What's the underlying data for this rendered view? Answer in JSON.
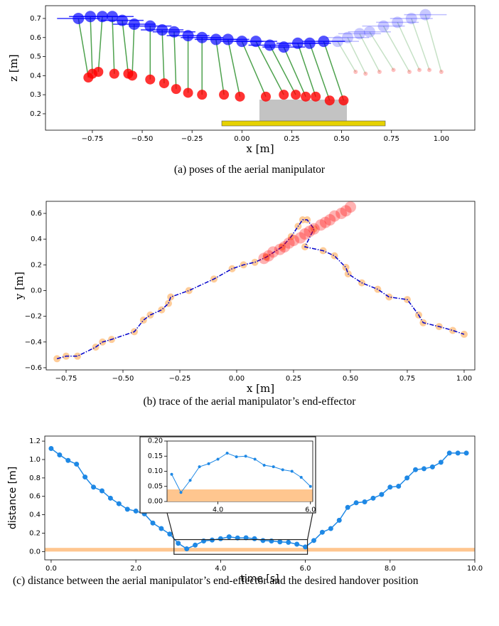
{
  "chart_data": [
    {
      "type": "poses",
      "caption": "(a) poses of the aerial manipulator",
      "xlabel": "x [m]",
      "ylabel": "z [m]",
      "xlim": [
        -0.985,
        1.168
      ],
      "ylim": [
        0.114,
        0.767
      ],
      "xticks": [
        {
          "value": -0.75,
          "label": "−0.75"
        },
        {
          "value": -0.5,
          "label": "−0.50"
        },
        {
          "value": -0.25,
          "label": "−0.25"
        },
        {
          "value": 0,
          "label": "0.00"
        },
        {
          "value": 0.25,
          "label": "0.25"
        },
        {
          "value": 0.5,
          "label": "0.50"
        },
        {
          "value": 0.75,
          "label": "0.75"
        },
        {
          "value": 1,
          "label": "1.00"
        }
      ],
      "yticks": [
        0.2,
        0.3,
        0.4,
        0.5,
        0.6,
        0.7
      ],
      "link_color": "#228b22",
      "series": [
        {
          "color": "#0000ff",
          "x": [
            -0.82,
            -0.76,
            -0.7,
            -0.65,
            -0.6,
            -0.54,
            -0.46,
            -0.4,
            -0.34,
            -0.27,
            -0.2,
            -0.13,
            -0.07,
            0.0,
            0.07,
            0.14,
            0.21,
            0.28,
            0.34,
            0.41,
            0.48,
            0.53,
            0.59,
            0.64,
            0.71,
            0.78,
            0.85,
            0.92
          ],
          "y": [
            0.7,
            0.71,
            0.71,
            0.71,
            0.69,
            0.67,
            0.66,
            0.64,
            0.63,
            0.61,
            0.6,
            0.59,
            0.59,
            0.58,
            0.58,
            0.56,
            0.55,
            0.57,
            0.57,
            0.58,
            0.58,
            0.6,
            0.62,
            0.63,
            0.66,
            0.68,
            0.7,
            0.72
          ]
        },
        {
          "color": "#ff0000",
          "x": [
            -0.77,
            -0.75,
            -0.72,
            -0.64,
            -0.57,
            -0.55,
            -0.46,
            -0.39,
            -0.33,
            -0.27,
            -0.2,
            -0.09,
            -0.01,
            0.12,
            0.21,
            0.27,
            0.32,
            0.37,
            0.44,
            0.51,
            0.57,
            0.62,
            0.69,
            0.76,
            0.84,
            0.89,
            0.94,
            1.0
          ],
          "y": [
            0.39,
            0.41,
            0.42,
            0.41,
            0.41,
            0.4,
            0.38,
            0.36,
            0.33,
            0.31,
            0.3,
            0.3,
            0.29,
            0.29,
            0.3,
            0.3,
            0.29,
            0.29,
            0.27,
            0.27,
            0.42,
            0.41,
            0.42,
            0.43,
            0.42,
            0.43,
            0.43,
            0.42
          ]
        }
      ]
    },
    {
      "type": "trace",
      "caption": "(b) trace of the aerial manipulator’s end-effector",
      "xlabel": "x [m]",
      "ylabel": "y [m]",
      "xlim": [
        -0.8375,
        1.047
      ],
      "ylim": [
        -0.617,
        0.694
      ],
      "xticks": [
        {
          "value": -0.75,
          "label": "−0.75"
        },
        {
          "value": -0.5,
          "label": "−0.50"
        },
        {
          "value": -0.25,
          "label": "−0.25"
        },
        {
          "value": 0,
          "label": "0.00"
        },
        {
          "value": 0.25,
          "label": "0.25"
        },
        {
          "value": 0.5,
          "label": "0.50"
        },
        {
          "value": 0.75,
          "label": "0.75"
        },
        {
          "value": 1,
          "label": "1.00"
        }
      ],
      "yticks": [
        {
          "value": -0.6,
          "label": "−0.6"
        },
        {
          "value": -0.4,
          "label": "−0.4"
        },
        {
          "value": -0.2,
          "label": "−0.2"
        },
        {
          "value": 0,
          "label": "0.0"
        },
        0.2,
        0.4,
        0.6
      ],
      "series": [
        {
          "color": "#0000cc",
          "marker_color": "#ffbf80",
          "x": [
            -0.79,
            -0.75,
            -0.7,
            -0.62,
            -0.59,
            -0.55,
            -0.45,
            -0.41,
            -0.38,
            -0.33,
            -0.3,
            -0.29,
            -0.21,
            -0.1,
            -0.02,
            0.03,
            0.08,
            0.13,
            0.2,
            0.24,
            0.27,
            0.29,
            0.31,
            0.34,
            0.3,
            0.38,
            0.43,
            0.48,
            0.49,
            0.55,
            0.62,
            0.67,
            0.75,
            0.8,
            0.82,
            0.89,
            0.95,
            1.0
          ],
          "y": [
            -0.53,
            -0.51,
            -0.51,
            -0.44,
            -0.4,
            -0.38,
            -0.32,
            -0.23,
            -0.19,
            -0.15,
            -0.1,
            -0.05,
            0.0,
            0.09,
            0.17,
            0.2,
            0.22,
            0.26,
            0.34,
            0.42,
            0.5,
            0.55,
            0.55,
            0.48,
            0.34,
            0.31,
            0.27,
            0.18,
            0.13,
            0.06,
            0.01,
            -0.05,
            -0.07,
            -0.19,
            -0.25,
            -0.28,
            -0.31,
            -0.34
          ]
        },
        {
          "color": "#ff0000",
          "x": [
            0.12,
            0.14,
            0.16,
            0.19,
            0.21,
            0.23,
            0.25,
            0.28,
            0.3,
            0.32,
            0.34,
            0.37,
            0.39,
            0.41,
            0.43,
            0.46,
            0.48,
            0.5
          ],
          "y": [
            0.25,
            0.27,
            0.3,
            0.32,
            0.34,
            0.37,
            0.39,
            0.41,
            0.44,
            0.46,
            0.48,
            0.51,
            0.53,
            0.55,
            0.58,
            0.6,
            0.62,
            0.65
          ]
        }
      ]
    },
    {
      "type": "line",
      "caption": "(c) distance between the aerial manipulator’s end-effector and the desired handover position",
      "xlabel": "time [s]",
      "ylabel": "distance [m]",
      "xlim": [
        -0.15,
        10.0
      ],
      "ylim": [
        -0.09,
        1.255
      ],
      "xticks": [
        {
          "value": 0,
          "label": "0.0"
        },
        {
          "value": 2,
          "label": "2.0"
        },
        {
          "value": 4,
          "label": "4.0"
        },
        {
          "value": 6,
          "label": "6.0"
        },
        {
          "value": 8,
          "label": "8.0"
        },
        {
          "value": 10,
          "label": "10.0"
        }
      ],
      "yticks": [
        {
          "value": 0,
          "label": "0.0"
        },
        0.2,
        0.4,
        0.6,
        0.8,
        {
          "value": 1,
          "label": "1.0"
        },
        1.2
      ],
      "band": [
        0,
        0.04
      ],
      "band_color": "#ffc68f",
      "x": [
        0.0,
        0.2,
        0.4,
        0.6,
        0.8,
        1.0,
        1.2,
        1.4,
        1.6,
        1.8,
        2.0,
        2.2,
        2.4,
        2.6,
        2.8,
        3.0,
        3.2,
        3.4,
        3.6,
        3.8,
        4.0,
        4.2,
        4.4,
        4.6,
        4.8,
        5.0,
        5.2,
        5.4,
        5.6,
        5.8,
        6.0,
        6.2,
        6.4,
        6.6,
        6.8,
        7.0,
        7.2,
        7.4,
        7.6,
        7.8,
        8.0,
        8.2,
        8.4,
        8.6,
        8.8,
        9.0,
        9.2,
        9.4,
        9.6,
        9.8
      ],
      "series": [
        {
          "color": "#1e88e5",
          "values": [
            1.12,
            1.05,
            0.99,
            0.95,
            0.81,
            0.7,
            0.66,
            0.58,
            0.52,
            0.46,
            0.44,
            0.41,
            0.31,
            0.25,
            0.19,
            0.09,
            0.03,
            0.07,
            0.115,
            0.125,
            0.14,
            0.16,
            0.148,
            0.15,
            0.14,
            0.12,
            0.115,
            0.105,
            0.1,
            0.08,
            0.05,
            0.12,
            0.21,
            0.25,
            0.34,
            0.48,
            0.53,
            0.54,
            0.58,
            0.62,
            0.7,
            0.71,
            0.8,
            0.89,
            0.9,
            0.92,
            0.97,
            1.07,
            1.07,
            1.07
          ]
        }
      ],
      "inset": {
        "xlim": [
          2.9,
          6.05
        ],
        "ylim": [
          0,
          0.2
        ],
        "zoom_ylim": [
          -0.03,
          0.13
        ],
        "xticks": [
          {
            "value": 4,
            "label": "4.0"
          },
          {
            "value": 6,
            "label": "6.0"
          }
        ],
        "yticks": [
          {
            "value": 0,
            "label": "0.00"
          },
          0.05,
          {
            "value": 0.1,
            "label": "0.10"
          },
          0.15,
          {
            "value": 0.2,
            "label": "0.20"
          }
        ]
      }
    }
  ]
}
